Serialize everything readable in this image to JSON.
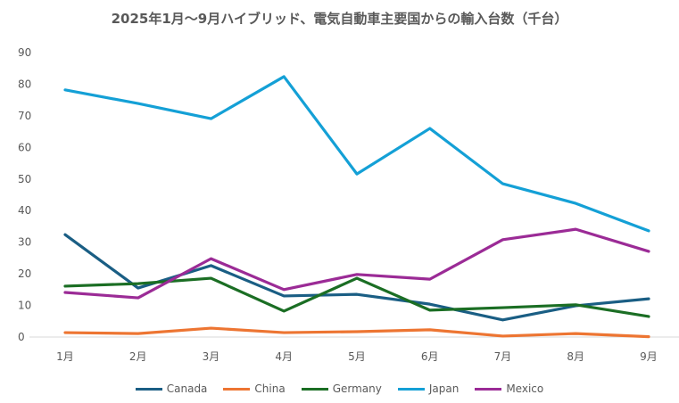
{
  "chart_data": {
    "type": "line",
    "title": "2025年1月～9月ハイブリッド、電気自動車主要国からの輸入台数（千台）",
    "xlabel": "",
    "ylabel": "",
    "categories": [
      "1月",
      "2月",
      "3月",
      "4月",
      "5月",
      "6月",
      "7月",
      "8月",
      "9月"
    ],
    "ylim": [
      0,
      90
    ],
    "yticks": [
      0,
      10,
      20,
      30,
      40,
      50,
      60,
      70,
      80,
      90
    ],
    "grid": false,
    "legend_position": "bottom",
    "series": [
      {
        "name": "Canada",
        "color": "#1a5e84",
        "values": [
          32.4,
          15.5,
          22.6,
          13.0,
          13.5,
          10.4,
          5.4,
          9.9,
          12.1
        ]
      },
      {
        "name": "China",
        "color": "#ed7532",
        "values": [
          1.4,
          1.1,
          2.8,
          1.4,
          1.7,
          2.3,
          0.3,
          1.1,
          0.1
        ]
      },
      {
        "name": "Germany",
        "color": "#1b6e24",
        "values": [
          16.1,
          16.9,
          18.6,
          8.2,
          18.6,
          8.5,
          9.3,
          10.2,
          6.5
        ]
      },
      {
        "name": "Japan",
        "color": "#14a0d6",
        "values": [
          78.2,
          73.9,
          69.1,
          82.4,
          51.6,
          66.0,
          48.5,
          42.3,
          33.6
        ]
      },
      {
        "name": "Mexico",
        "color": "#9b2b96",
        "values": [
          14.1,
          12.4,
          24.8,
          15.0,
          19.8,
          18.3,
          30.8,
          34.1,
          27.1
        ]
      }
    ]
  }
}
